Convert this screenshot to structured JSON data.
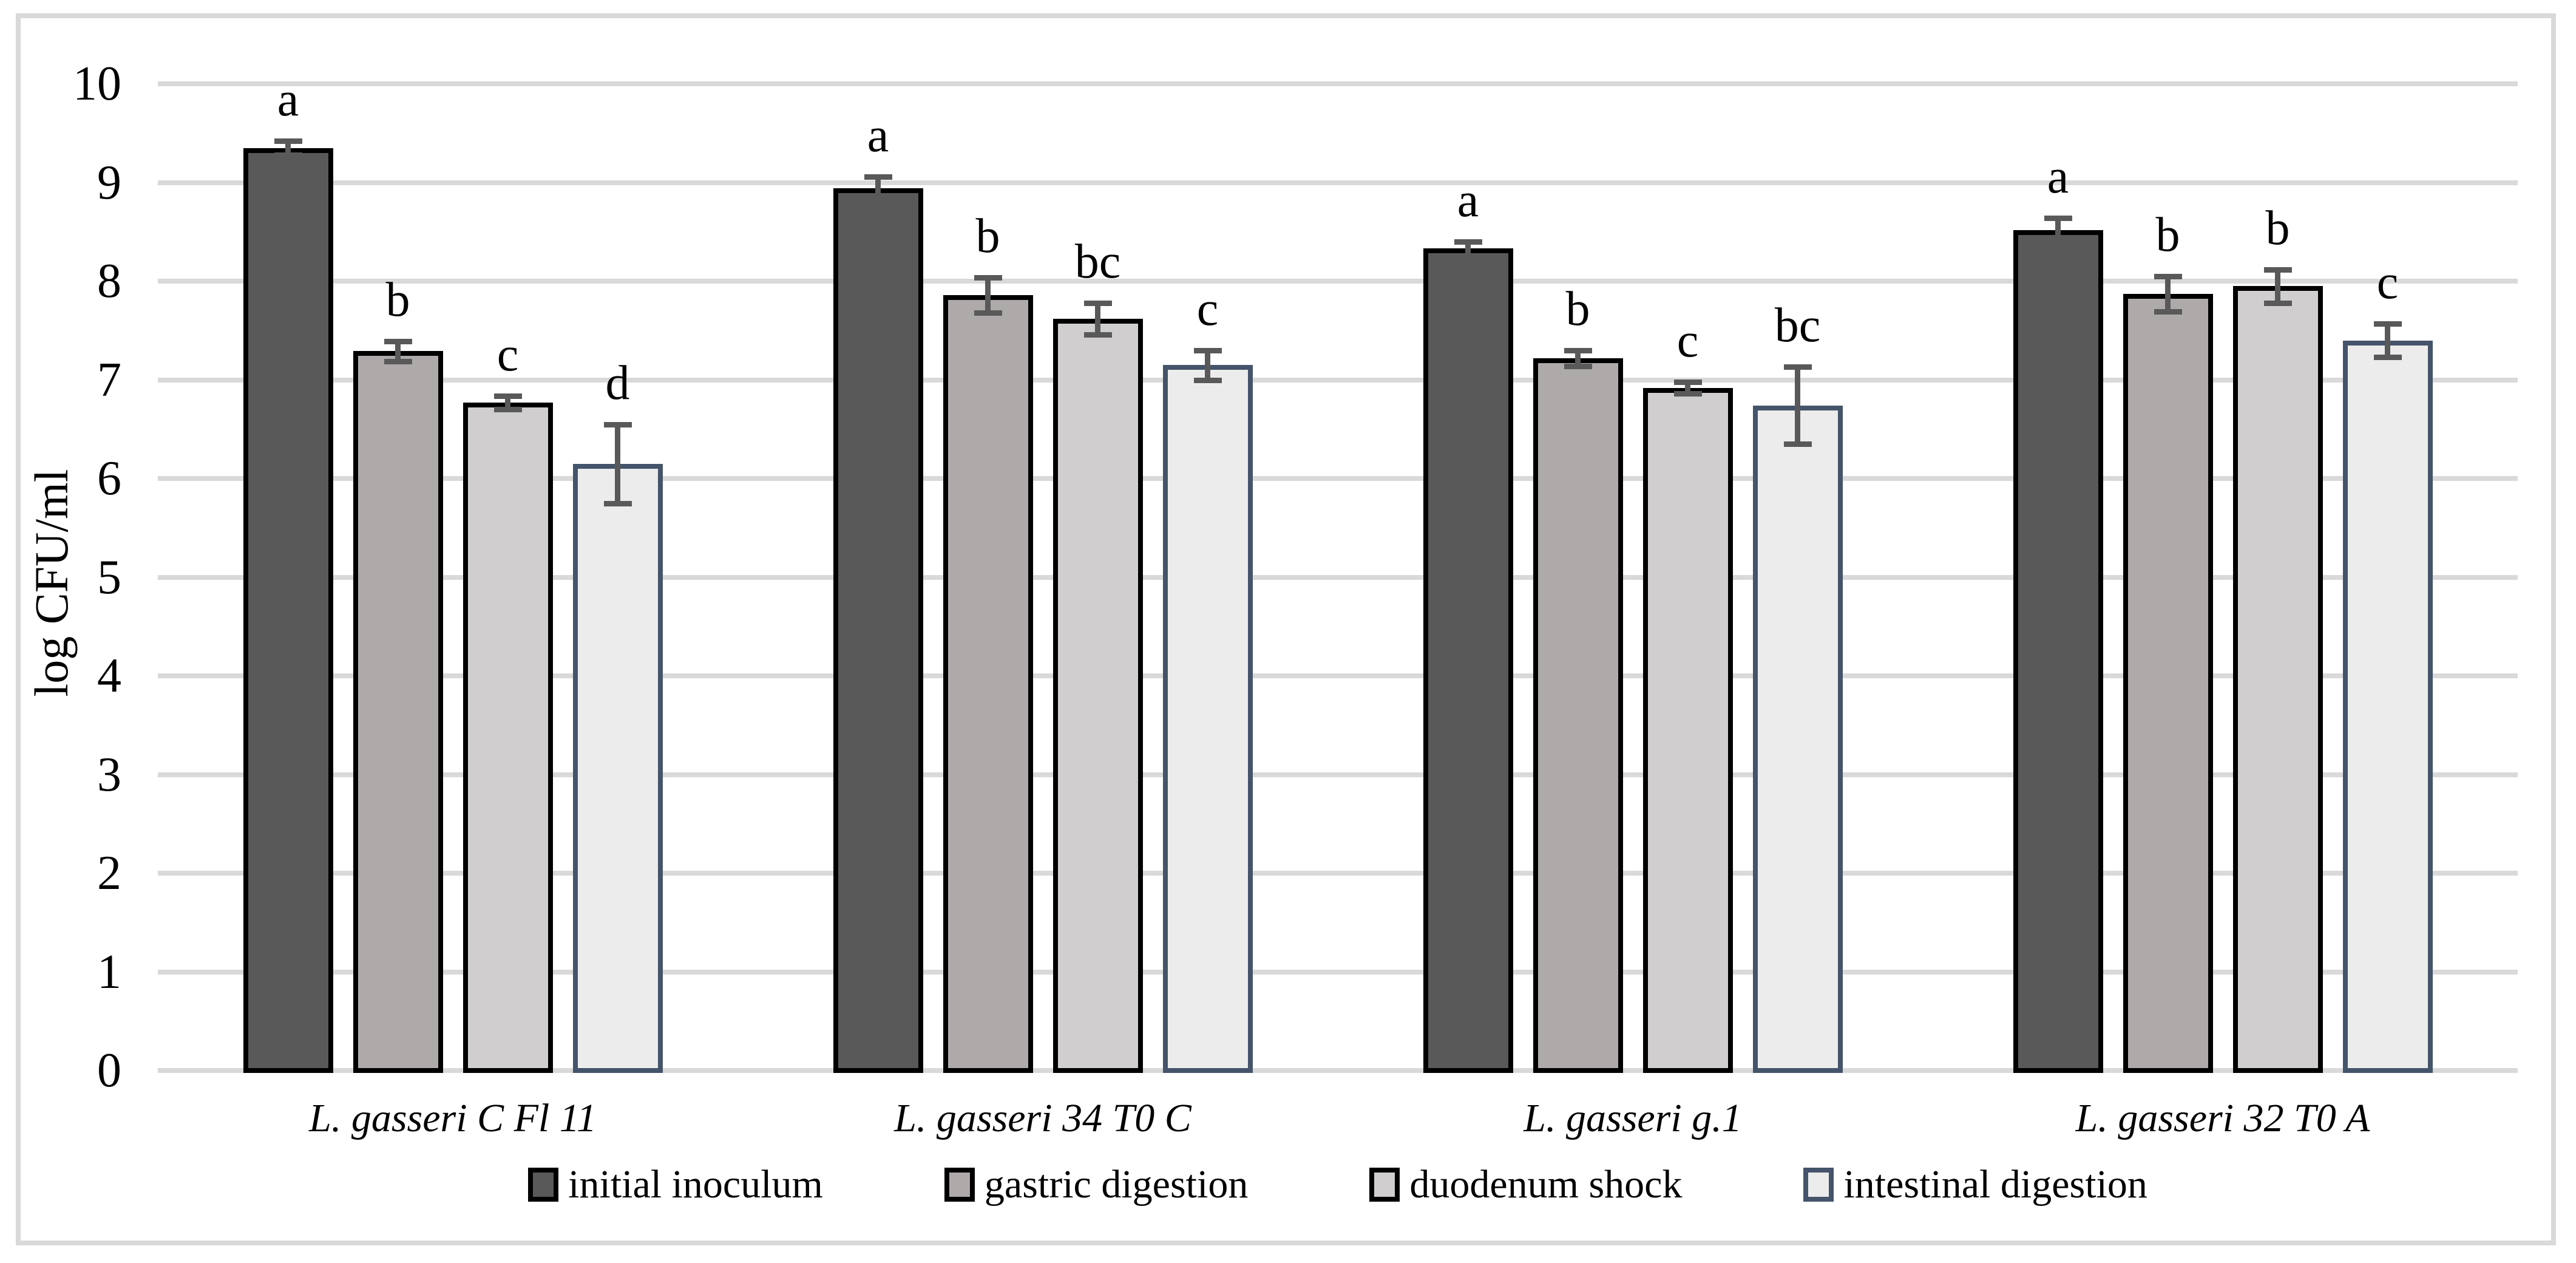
{
  "figure": {
    "background": "#ffffff",
    "frame_color": "#d9d9d9"
  },
  "chart_data": {
    "type": "bar",
    "title": "",
    "xlabel": "",
    "ylabel": "log CFU/ml",
    "ylim": [
      0,
      10
    ],
    "ytick_interval": 1,
    "yticks": [
      0,
      1,
      2,
      3,
      4,
      5,
      6,
      7,
      8,
      9,
      10
    ],
    "grid": "horizontal",
    "gridline_color": "#d9d9d9",
    "error_bar_color": "#595959",
    "legend_position": "bottom",
    "categories": [
      "L. gasseri C Fl 11",
      "L. gasseri 34 T0 C",
      "L. gasseri g.1",
      "L. gasseri 32 T0 A"
    ],
    "series": [
      {
        "name": "initial inoculum",
        "fill": "#595959",
        "border": "#000000",
        "values": [
          9.35,
          8.94,
          8.33,
          8.52
        ],
        "errors": [
          0.07,
          0.12,
          0.07,
          0.12
        ],
        "letters": [
          "a",
          "a",
          "a",
          "a"
        ]
      },
      {
        "name": "gastric digestion",
        "fill": "#aeaaaa",
        "border": "#000000",
        "values": [
          7.29,
          7.86,
          7.22,
          7.87
        ],
        "errors": [
          0.1,
          0.18,
          0.08,
          0.18
        ],
        "letters": [
          "b",
          "b",
          "b",
          "b"
        ]
      },
      {
        "name": "duodenum shock",
        "fill": "#d0cece",
        "border": "#000000",
        "values": [
          6.77,
          7.62,
          6.92,
          7.95
        ],
        "errors": [
          0.07,
          0.16,
          0.06,
          0.17
        ],
        "letters": [
          "c",
          "bc",
          "c",
          "b"
        ]
      },
      {
        "name": "intestinal digestion",
        "fill": "#ececec",
        "border": "#44546a",
        "values": [
          6.15,
          7.15,
          6.74,
          7.4
        ],
        "errors": [
          0.4,
          0.15,
          0.39,
          0.17
        ],
        "letters": [
          "d",
          "c",
          "bc",
          "c"
        ]
      }
    ]
  }
}
